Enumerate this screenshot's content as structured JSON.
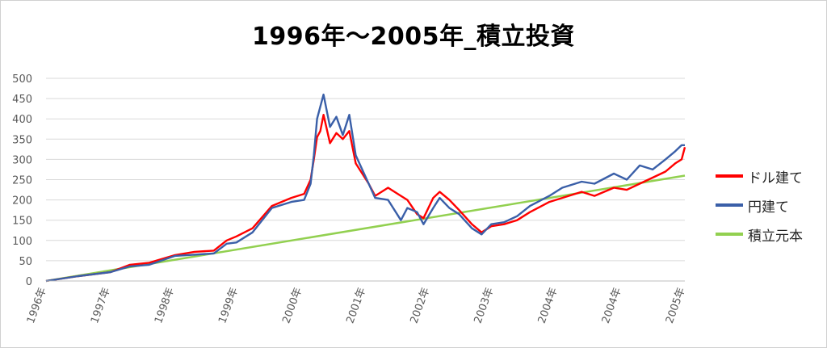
{
  "chart_data": {
    "type": "line",
    "title": "1996年～2005年_積立投資",
    "xlabel": "",
    "ylabel": "",
    "ylim": [
      0,
      500
    ],
    "y_ticks": [
      "0",
      "50",
      "100",
      "150",
      "200",
      "250",
      "300",
      "350",
      "400",
      "450",
      "500"
    ],
    "x_range": [
      1996.0,
      2005.9
    ],
    "x_tick_labels": [
      "1996年",
      "1997年",
      "1998年",
      "1999年",
      "2000年",
      "2001年",
      "2002年",
      "2003年",
      "2004年",
      "2004年",
      "2005年"
    ],
    "grid": true,
    "legend_position": "right",
    "series": [
      {
        "name": "ドル建て",
        "color": "#ff0000",
        "x": [
          1996.0,
          1996.5,
          1997.0,
          1997.3,
          1997.6,
          1998.0,
          1998.3,
          1998.6,
          1998.8,
          1998.95,
          1999.2,
          1999.5,
          1999.8,
          2000.0,
          2000.1,
          2000.15,
          2000.2,
          2000.25,
          2000.3,
          2000.4,
          2000.5,
          2000.6,
          2000.7,
          2000.8,
          2001.0,
          2001.1,
          2001.3,
          2001.5,
          2001.6,
          2001.75,
          2001.85,
          2002.0,
          2002.1,
          2002.25,
          2002.4,
          2002.6,
          2002.75,
          2002.9,
          2003.1,
          2003.3,
          2003.5,
          2003.8,
          2004.0,
          2004.3,
          2004.5,
          2004.8,
          2005.0,
          2005.2,
          2005.4,
          2005.6,
          2005.75,
          2005.85,
          2005.9
        ],
        "values": [
          0,
          12,
          22,
          40,
          45,
          64,
          72,
          75,
          100,
          110,
          130,
          185,
          205,
          215,
          250,
          300,
          355,
          370,
          410,
          340,
          365,
          350,
          370,
          290,
          240,
          210,
          230,
          210,
          200,
          165,
          155,
          205,
          220,
          200,
          175,
          140,
          120,
          135,
          140,
          150,
          170,
          195,
          205,
          220,
          210,
          230,
          225,
          240,
          255,
          270,
          290,
          300,
          330
        ]
      },
      {
        "name": "円建て",
        "color": "#3a5fa8",
        "x": [
          1996.0,
          1996.5,
          1997.0,
          1997.3,
          1997.6,
          1998.0,
          1998.3,
          1998.6,
          1998.8,
          1998.95,
          1999.2,
          1999.5,
          1999.8,
          2000.0,
          2000.1,
          2000.15,
          2000.2,
          2000.25,
          2000.3,
          2000.4,
          2000.5,
          2000.6,
          2000.7,
          2000.8,
          2001.0,
          2001.1,
          2001.3,
          2001.5,
          2001.6,
          2001.75,
          2001.85,
          2002.0,
          2002.1,
          2002.25,
          2002.4,
          2002.6,
          2002.75,
          2002.9,
          2003.1,
          2003.3,
          2003.5,
          2003.8,
          2004.0,
          2004.3,
          2004.5,
          2004.8,
          2005.0,
          2005.2,
          2005.4,
          2005.6,
          2005.75,
          2005.85,
          2005.9
        ],
        "values": [
          0,
          12,
          22,
          36,
          40,
          62,
          65,
          68,
          92,
          95,
          120,
          180,
          195,
          200,
          240,
          310,
          400,
          430,
          460,
          380,
          405,
          360,
          410,
          310,
          240,
          205,
          200,
          150,
          180,
          170,
          140,
          180,
          205,
          180,
          165,
          130,
          115,
          140,
          145,
          160,
          185,
          210,
          230,
          245,
          240,
          265,
          250,
          285,
          275,
          300,
          320,
          335,
          335
        ]
      },
      {
        "name": "積立元本",
        "color": "#92d050",
        "x": [
          1996.0,
          2005.9
        ],
        "values": [
          0,
          260
        ]
      }
    ]
  }
}
